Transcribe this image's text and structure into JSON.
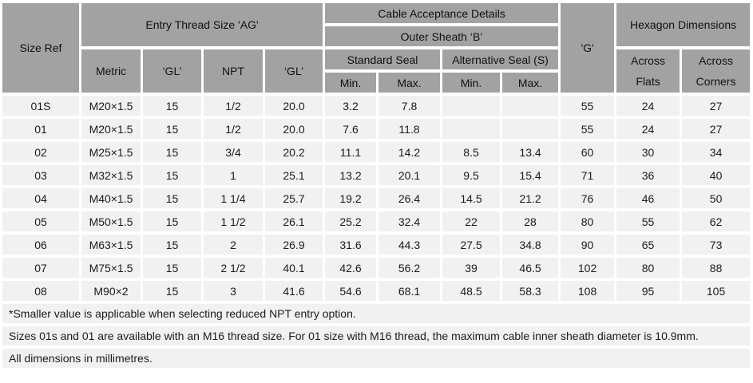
{
  "colors": {
    "header_bg": "#a2a2a2",
    "row_bg": "#f1f1f1",
    "page_bg": "#ffffff",
    "text": "#1b1b1b"
  },
  "table": {
    "header": {
      "size_ref": "Size Ref",
      "entry_thread": "Entry Thread Size 'AG'",
      "cable_acceptance": "Cable Acceptance Details",
      "outer_sheath": "Outer Sheath ‘B’",
      "metric": "Metric",
      "gl_metric": "‘GL’",
      "npt": "NPT",
      "gl_npt": "‘GL’",
      "standard_seal": "Standard Seal",
      "alternative_seal": "Alternative Seal (S)",
      "std_min": "Min.",
      "std_max": "Max.",
      "alt_min": "Min.",
      "alt_max": "Max.",
      "g": "'G'",
      "hexagon": "Hexagon Dimensions",
      "across_flats": "Across\nFlats",
      "across_corners": "Across\nCorners"
    },
    "rows": [
      [
        "01S",
        "M20×1.5",
        "15",
        "1/2",
        "20.0",
        "3.2",
        "7.8",
        "",
        "",
        "55",
        "24",
        "27"
      ],
      [
        "01",
        "M20×1.5",
        "15",
        "1/2",
        "20.0",
        "7.6",
        "11.8",
        "",
        "",
        "55",
        "24",
        "27"
      ],
      [
        "02",
        "M25×1.5",
        "15",
        "3/4",
        "20.2",
        "11.1",
        "14.2",
        "8.5",
        "13.4",
        "60",
        "30",
        "34"
      ],
      [
        "03",
        "M32×1.5",
        "15",
        "1",
        "25.1",
        "13.2",
        "20.1",
        "9.5",
        "15.4",
        "71",
        "36",
        "40"
      ],
      [
        "04",
        "M40×1.5",
        "15",
        "1 1/4",
        "25.7",
        "19.2",
        "26.4",
        "14.5",
        "21.2",
        "76",
        "46",
        "50"
      ],
      [
        "05",
        "M50×1.5",
        "15",
        "1 1/2",
        "26.1",
        "25.2",
        "32.4",
        "22",
        "28",
        "80",
        "55",
        "62"
      ],
      [
        "06",
        "M63×1.5",
        "15",
        "2",
        "26.9",
        "31.6",
        "44.3",
        "27.5",
        "34.8",
        "90",
        "65",
        "73"
      ],
      [
        "07",
        "M75×1.5",
        "15",
        "2 1/2",
        "40.1",
        "42.6",
        "56.2",
        "39",
        "46.5",
        "102",
        "80",
        "88"
      ],
      [
        "08",
        "M90×2",
        "15",
        "3",
        "41.6",
        "54.6",
        "68.1",
        "48.5",
        "58.3",
        "108",
        "95",
        "105"
      ]
    ],
    "notes": [
      "*Smaller value is applicable when selecting reduced NPT entry option.",
      "Sizes 01s and 01    are available with an M16 thread size. For 01 size with M16 thread, the maximum cable inner sheath diameter is 10.9mm.",
      "All dimensions in millimetres."
    ]
  }
}
